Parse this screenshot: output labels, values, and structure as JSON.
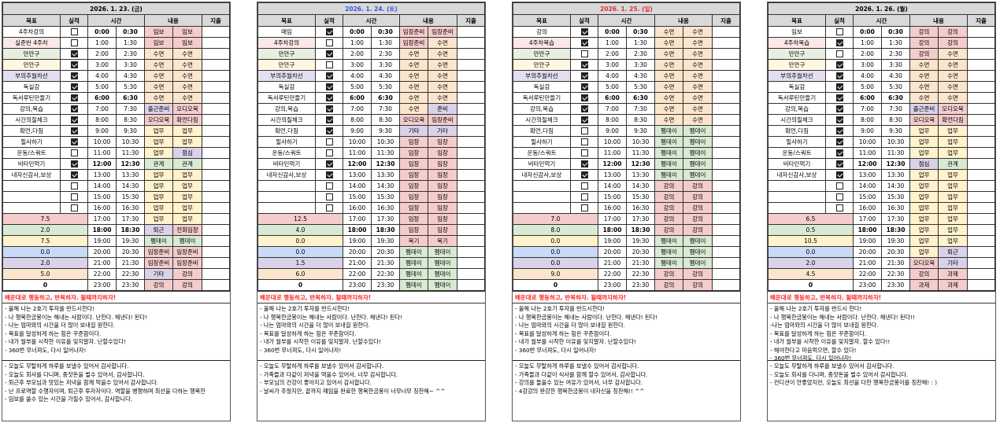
{
  "headers": {
    "goal": "목표",
    "done": "실적",
    "time": "시간",
    "content": "내용",
    "expense": "지출"
  },
  "times": [
    [
      "0:00",
      "0:30"
    ],
    [
      "1:00",
      "1:30"
    ],
    [
      "2:00",
      "2:30"
    ],
    [
      "3:00",
      "3:30"
    ],
    [
      "4:00",
      "4:30"
    ],
    [
      "5:00",
      "5:30"
    ],
    [
      "6:00",
      "6:30"
    ],
    [
      "7:00",
      "7:30"
    ],
    [
      "8:00",
      "8:30"
    ],
    [
      "9:00",
      "9:30"
    ],
    [
      "10:00",
      "10:30"
    ],
    [
      "11:00",
      "11:30"
    ],
    [
      "12:00",
      "12:30"
    ],
    [
      "13:00",
      "13:30"
    ],
    [
      "14:00",
      "14:30"
    ],
    [
      "15:00",
      "15:30"
    ],
    [
      "16:00",
      "16:30"
    ],
    [
      "17:00",
      "17:30"
    ],
    [
      "18:00",
      "18:30"
    ],
    [
      "19:00",
      "19:30"
    ],
    [
      "20:00",
      "20:30"
    ],
    [
      "21:00",
      "21:30"
    ],
    [
      "22:00",
      "22:30"
    ],
    [
      "23:00",
      "23:30"
    ]
  ],
  "bold_hours": [
    0,
    6,
    12,
    18
  ],
  "goal_row_colors": [
    "#ffffff",
    "#fce8e8",
    "#e6efe1",
    "#fff8e1",
    "#e4dff0"
  ],
  "summary_colors": [
    "#f4cccc",
    "#d9ead3",
    "#fff2cc",
    "#c9daf8",
    "#d9d2e9",
    "#fce5cd",
    "#ffffff"
  ],
  "category_colors": {
    "임보": "#f4cccc",
    "수면": "#fce5cd",
    "출근준비": "#d9d2e9",
    "오디오북": "#f4cccc",
    "확언다짐": "#f4cccc",
    "업무": "#fff2cc",
    "점심": "#d9d2e9",
    "관계": "#d9ead3",
    "퇴근": "#d9d2e9",
    "전화임장": "#f4cccc",
    "펨데이": "#d9ead3",
    "임장준비": "#f4cccc",
    "기타": "#d9d2e9",
    "강의": "#f4cccc",
    "준비": "#d9d2e9",
    "임장": "#f4cccc",
    "복기": "#f4cccc",
    "과제": "#f4cccc"
  },
  "motto": "배운대로 행동하고, 반복하자. 될때까지하자!",
  "days": [
    {
      "date": "2026. 1. 23. (금)",
      "date_color": "#000000",
      "goals": [
        {
          "text": "4주차강의",
          "done": false
        },
        {
          "text": "실준반 4주차",
          "done": false
        },
        {
          "text": "만안구",
          "done": true
        },
        {
          "text": "만안구",
          "done": true
        },
        {
          "text": "부의추월차선",
          "done": true
        },
        {
          "text": "독실감",
          "done": true
        },
        {
          "text": "독서루틴만들기",
          "done": true
        },
        {
          "text": "강의,복습",
          "done": true
        },
        {
          "text": "시간의질체크",
          "done": true
        },
        {
          "text": "확언,다짐",
          "done": true
        },
        {
          "text": "필사하기",
          "done": true
        },
        {
          "text": "운동/스쿼트",
          "done": false
        },
        {
          "text": "비타민먹기",
          "done": true
        },
        {
          "text": "내자신감사,보상",
          "done": true
        },
        {
          "text": "",
          "done": false
        },
        {
          "text": "",
          "done": false
        },
        {
          "text": "",
          "done": false
        }
      ],
      "summary": [
        "7.5",
        "2.0",
        "7.5",
        "0.0",
        "2.0",
        "5.0",
        "0"
      ],
      "schedule": [
        [
          "임보",
          "임보"
        ],
        [
          "임보",
          "임보"
        ],
        [
          "수면",
          "수면"
        ],
        [
          "수면",
          "수면"
        ],
        [
          "수면",
          "수면"
        ],
        [
          "수면",
          "수면"
        ],
        [
          "수면",
          "수면"
        ],
        [
          "출근준비",
          "오디오북"
        ],
        [
          "오디오북",
          "확언다짐"
        ],
        [
          "업무",
          "업무"
        ],
        [
          "업무",
          "업무"
        ],
        [
          "업무",
          "점심"
        ],
        [
          "관계",
          "관계"
        ],
        [
          "업무",
          "업무"
        ],
        [
          "업무",
          "업무"
        ],
        [
          "업무",
          "업무"
        ],
        [
          "업무",
          "업무"
        ],
        [
          "업무",
          "업무"
        ],
        [
          "퇴근",
          "전화임장"
        ],
        [
          "펨데이",
          "펨데이"
        ],
        [
          "임장준비",
          "임장준비"
        ],
        [
          "임장준비",
          "임장준비"
        ],
        [
          "기타",
          "강의"
        ],
        [
          "강의",
          "강의"
        ]
      ],
      "affirmations": [
        "- 올해 나는 2호기 투자를 반드시한다!",
        "- 나 행복한금봉이는 해내는 사람이다. 난한다. 해낸다! 된다!",
        "- 나는 엄마와의 시간을 더 많이 보내길 원한다.",
        "- 목표를 달성하게 하는 힘은 꾸준함이다.",
        "- 내가 월부를 시작한 이유를 잊지말자. 난할수있다!",
        "- 360번 무너져도, 다시 일어나자!"
      ],
      "gratitude": [
        "- 오늘도 무탈하게 하루를 보낼수 있어서 감사합니다.",
        "- 오늘도 회사를 다니며, 종잣돈을 벌수 있어서, 감사합니다.",
        "- 퇴근후 부모님과 맛있는 저녁을 함께 먹을수 있어서 감사합니다.",
        "- 난 프로역할 수행자이며, 퇴근후 투자자이다. 역할을 병행하며 최선을 다하는 행복한",
        "- 임보를 쓸수 있는 시간을 가질수 있어서, 감사합니다."
      ]
    },
    {
      "date": "2026. 1. 24. (토)",
      "date_color": "#3355dd",
      "goals": [
        {
          "text": "매임",
          "done": true
        },
        {
          "text": "4주차강의",
          "done": false
        },
        {
          "text": "만안구",
          "done": true
        },
        {
          "text": "만안구",
          "done": false
        },
        {
          "text": "부의추월차선",
          "done": true
        },
        {
          "text": "독실감",
          "done": true
        },
        {
          "text": "독서루틴만들기",
          "done": true
        },
        {
          "text": "강의,복습",
          "done": true
        },
        {
          "text": "시간의질체크",
          "done": true
        },
        {
          "text": "확언,다짐",
          "done": true
        },
        {
          "text": "필사하기",
          "done": false
        },
        {
          "text": "운동/스쿼트",
          "done": false
        },
        {
          "text": "비타민먹기",
          "done": true
        },
        {
          "text": "내자신감사,보상",
          "done": true
        },
        {
          "text": "",
          "done": false
        },
        {
          "text": "",
          "done": false
        },
        {
          "text": "",
          "done": false
        }
      ],
      "summary": [
        "12.5",
        "4.0",
        "0.0",
        "0.0",
        "1.5",
        "6.0",
        "0"
      ],
      "schedule": [
        [
          "임장준비",
          "임장준비"
        ],
        [
          "임장준비",
          "수면"
        ],
        [
          "수면",
          "수면"
        ],
        [
          "수면",
          "수면"
        ],
        [
          "수면",
          "수면"
        ],
        [
          "수면",
          "수면"
        ],
        [
          "수면",
          "수면"
        ],
        [
          "수면",
          "준비"
        ],
        [
          "오디오북",
          "임장준비"
        ],
        [
          "기타",
          "기타"
        ],
        [
          "임장",
          "임장"
        ],
        [
          "임장",
          "임장"
        ],
        [
          "임장",
          "임장"
        ],
        [
          "임장",
          "임장"
        ],
        [
          "임장",
          "임장"
        ],
        [
          "임장",
          "임장"
        ],
        [
          "임장",
          "임장"
        ],
        [
          "임장",
          "임장"
        ],
        [
          "임장",
          "임장"
        ],
        [
          "복기",
          "복기"
        ],
        [
          "펨데이",
          "펨데이"
        ],
        [
          "펨데이",
          "펨데이"
        ],
        [
          "펨데이",
          "펨데이"
        ],
        [
          "펨데이",
          "펨데이"
        ]
      ],
      "affirmations": [
        "- 올해 나는 2호기 투자를 반드시한다!",
        "- 나 행복한금봉이는 해내는 사람이다. 난한다. 해낸다! 된다!",
        "- 나는 엄마와의 시간을 더 많이 보내길 원한다.",
        "- 목표를 달성하게 하는 힘은 꾸준함이다.",
        "- 내가 월부를 시작한 이유를 잊지말자. 난할수있다!",
        "- 360번 무너져도, 다시 일어나자!"
      ],
      "gratitude": [
        "- 오늘도 무탈하게 하루를 보낼수 있어서 감사합니다.",
        "- 가족들과 다같이 저녁을 먹을수 있어서, 너무 감사합니다.",
        "- 부모님의 건강이 좋아지고 있어서 감사합니다.",
        "- 날씨가 추웠지만, 끝까지 매임을 완료한 행복한금봉이 너무너무 칭찬해~ ^^"
      ]
    },
    {
      "date": "2026. 1. 25. (일)",
      "date_color": "#e03030",
      "goals": [
        {
          "text": "강의",
          "done": true
        },
        {
          "text": "4주차복습",
          "done": true
        },
        {
          "text": "만안구",
          "done": false
        },
        {
          "text": "만안구",
          "done": true
        },
        {
          "text": "부의추월차선",
          "done": true
        },
        {
          "text": "독실감",
          "done": true
        },
        {
          "text": "독서루틴만들기",
          "done": true
        },
        {
          "text": "강의,복습",
          "done": true
        },
        {
          "text": "시간의질체크",
          "done": true
        },
        {
          "text": "확언,다짐",
          "done": false
        },
        {
          "text": "필사하기",
          "done": false
        },
        {
          "text": "운동/스쿼트",
          "done": false
        },
        {
          "text": "비타민먹기",
          "done": true
        },
        {
          "text": "내자신감사,보상",
          "done": true
        },
        {
          "text": "",
          "done": false
        },
        {
          "text": "",
          "done": false
        },
        {
          "text": "",
          "done": false
        }
      ],
      "summary": [
        "7.0",
        "8.0",
        "0.0",
        "0.0",
        "0.0",
        "9.0",
        "0"
      ],
      "schedule": [
        [
          "수면",
          "수면"
        ],
        [
          "수면",
          "수면"
        ],
        [
          "수면",
          "수면"
        ],
        [
          "수면",
          "수면"
        ],
        [
          "수면",
          "수면"
        ],
        [
          "수면",
          "수면"
        ],
        [
          "수면",
          "수면"
        ],
        [
          "수면",
          "수면"
        ],
        [
          "수면",
          "수면"
        ],
        [
          "펨데이",
          "펨데이"
        ],
        [
          "펨데이",
          "펨데이"
        ],
        [
          "펨데이",
          "펨데이"
        ],
        [
          "펨데이",
          "펨데이"
        ],
        [
          "펨데이",
          "펨데이"
        ],
        [
          "강의",
          "강의"
        ],
        [
          "강의",
          "강의"
        ],
        [
          "강의",
          "강의"
        ],
        [
          "강의",
          "강의"
        ],
        [
          "강의",
          "강의"
        ],
        [
          "펨데이",
          "펨데이"
        ],
        [
          "펨데이",
          "펨데이"
        ],
        [
          "펨데이",
          "펨데이"
        ],
        [
          "강의",
          "강의"
        ],
        [
          "강의",
          "강의"
        ]
      ],
      "affirmations": [
        "- 올해 나는 2호기 투자를 반드시한다!",
        "- 나 행복한금봉이는 해내는 사람이다. 난한다. 해낸다! 된다!",
        "- 나는 엄마와의 시간을 더 많이 보내길 원한다.",
        "- 목표를 달성하게 하는 힘은 꾸준함이다.",
        "- 내가 월부를 시작한 이유를 잊지말자. 난할수있다!",
        "- 360번 무너져도, 다시 일어나자!"
      ],
      "gratitude": [
        "- 오늘도 무탈하게 하루를 보낼수 있어서 감사합니다.",
        "- 가족들과 다같이 식사를 함께 할수 있어서, 감사합니다.",
        "- 강의를 들을수 있는 여유가 있어서, 너무 감사합니다.",
        "- 4강강의 완강한 행복한금봉이 내자신을 칭찬해!! ^^"
      ]
    },
    {
      "date": "2026. 1. 26. (월)",
      "date_color": "#000000",
      "goals": [
        {
          "text": "임보",
          "done": false
        },
        {
          "text": "4주차복습",
          "done": true
        },
        {
          "text": "만안구",
          "done": false
        },
        {
          "text": "만안구",
          "done": true
        },
        {
          "text": "부의추월차선",
          "done": true
        },
        {
          "text": "독실감",
          "done": true
        },
        {
          "text": "독서루틴만들기",
          "done": true
        },
        {
          "text": "강의,복습",
          "done": true
        },
        {
          "text": "시간의질체크",
          "done": true
        },
        {
          "text": "확언,다짐",
          "done": true
        },
        {
          "text": "필사하기",
          "done": true
        },
        {
          "text": "운동/스쿼트",
          "done": true
        },
        {
          "text": "비타민먹기",
          "done": true
        },
        {
          "text": "내자신감사,보상",
          "done": true
        },
        {
          "text": "",
          "done": false
        },
        {
          "text": "",
          "done": false
        },
        {
          "text": "",
          "done": false
        }
      ],
      "summary": [
        "6.5",
        "0.5",
        "10.5",
        "0.0",
        "2.0",
        "4.5",
        "0"
      ],
      "schedule": [
        [
          "강의",
          "강의"
        ],
        [
          "강의",
          "강의"
        ],
        [
          "강의",
          "수면"
        ],
        [
          "수면",
          "수면"
        ],
        [
          "수면",
          "수면"
        ],
        [
          "수면",
          "수면"
        ],
        [
          "수면",
          "수면"
        ],
        [
          "출근준비",
          "오디오북"
        ],
        [
          "오디오북",
          "확언다짐"
        ],
        [
          "업무",
          "업무"
        ],
        [
          "업무",
          "업무"
        ],
        [
          "업무",
          "업무"
        ],
        [
          "점심",
          "관계"
        ],
        [
          "업무",
          "업무"
        ],
        [
          "업무",
          "업무"
        ],
        [
          "업무",
          "업무"
        ],
        [
          "업무",
          "업무"
        ],
        [
          "업무",
          "업무"
        ],
        [
          "업무",
          "업무"
        ],
        [
          "업무",
          "업무"
        ],
        [
          "업무",
          "퇴근"
        ],
        [
          "오디오북",
          "기타"
        ],
        [
          "강의",
          "과제"
        ],
        [
          "과제",
          "과제"
        ]
      ],
      "affirmations": [
        "- 올해 나는 2호기 투자를 반드시 한다!",
        "- 나 행복한금봉이는 해내는 사람이다. 난한다. 해낸다! 된다!!",
        "-나는 엄마와의 시간을 더 많이 보내길 원한다.",
        "- 목표를 달성하게 하는 힘은 꾸준함이다.",
        "- 내가 월부를 시작한 이유를 잊지말자. 할수 있다!!",
        "- 해야한다고 마음먹으면, 할수 있다!",
        "- 360번 무너져도, 다시 일어나자!"
      ],
      "gratitude": [
        "- 오늘도 무탈하게 하루를 보낼수 있어서 감사합니다.",
        "- 오늘도 회사를 다니며, 종잣돈을 벌수 있어서 감사합니다.",
        "- 컨디션이 안좋았지만, 오늘도 최선을 다한 행복한금봉이를 칭찬해! : )"
      ]
    }
  ]
}
